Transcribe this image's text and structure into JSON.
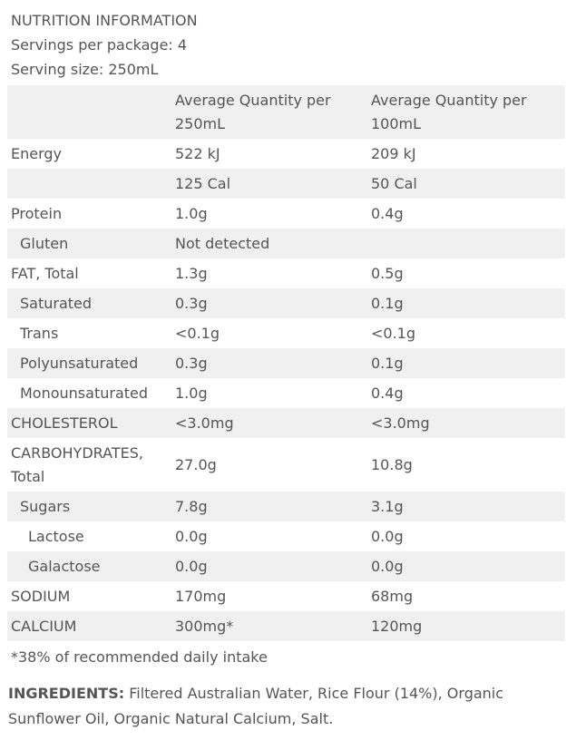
{
  "header": {
    "title": "NUTRITION INFORMATION",
    "servings": "Servings per package: 4",
    "serving_size": "Serving size: 250mL"
  },
  "table": {
    "columns": [
      "Average Quantity per 250mL",
      "Average Quantity per 100mL"
    ],
    "rows": [
      {
        "label": "Energy",
        "per_serving": "522 kJ",
        "per_100ml": "209 kJ"
      },
      {
        "per_serving": "125 Cal",
        "per_100ml": "50 Cal"
      },
      {
        "label": "Protein",
        "per_serving": "1.0g",
        "per_100ml": "0.4g"
      },
      {
        "label": "Gluten",
        "per_serving": "Not detected"
      },
      {
        "label": "FAT, Total",
        "per_serving": "1.3g",
        "per_100ml": "0.5g"
      },
      {
        "label": "Saturated",
        "per_serving": "0.3g",
        "per_100ml": "0.1g"
      },
      {
        "label": "Trans",
        "per_serving": "<0.1g",
        "per_100ml": "<0.1g"
      },
      {
        "label": "Polyunsaturated",
        "per_serving": "0.3g",
        "per_100ml": "0.1g"
      },
      {
        "label": "Monounsaturated",
        "per_serving": "1.0g",
        "per_100ml": "0.4g"
      },
      {
        "label": "CHOLESTEROL",
        "per_serving": "<3.0mg",
        "per_100ml": "<3.0mg"
      },
      {
        "label": "CARBOHYDRATES, Total",
        "per_serving": "27.0g",
        "per_100ml": "10.8g"
      },
      {
        "label": "Sugars",
        "per_serving": "7.8g",
        "per_100ml": "3.1g"
      },
      {
        "label": "Lactose",
        "per_serving": "0.0g",
        "per_100ml": "0.0g"
      },
      {
        "label": "Galactose",
        "per_serving": "0.0g",
        "per_100ml": "0.0g"
      },
      {
        "label": "SODIUM",
        "per_serving": "170mg",
        "per_100ml": "68mg"
      },
      {
        "label": "CALCIUM",
        "per_serving": "300mg*",
        "per_100ml": "120mg"
      }
    ]
  },
  "footnote": "*38% of recommended daily intake",
  "ingredients": {
    "label": "INGREDIENTS:",
    "text": "Filtered Australian Water, Rice Flour (14%), Organic Sunflower Oil, Organic Natural Calcium, Salt."
  }
}
